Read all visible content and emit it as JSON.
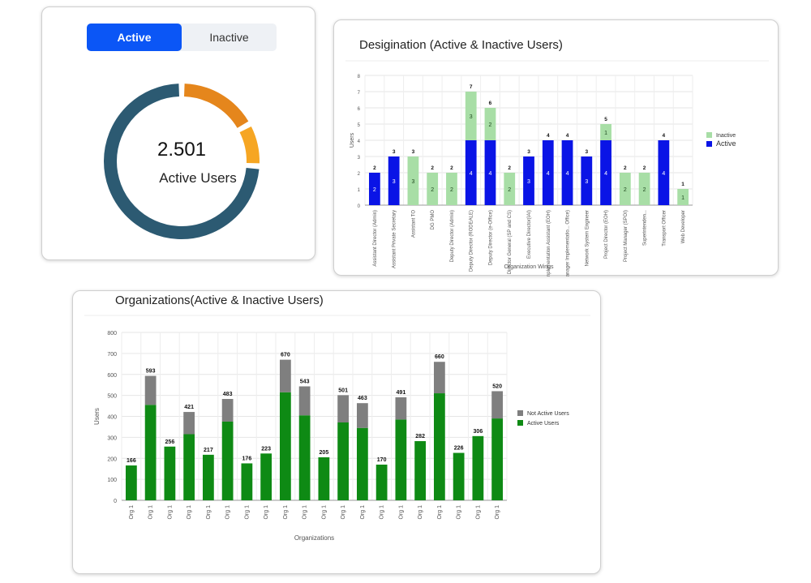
{
  "donut_card": {
    "tabs": {
      "active": "Active",
      "inactive": "Inactive"
    },
    "value": "2.501",
    "label": "Active Users",
    "colors": {
      "ring": "#2c5a72",
      "accent1": "#e5861c",
      "accent2": "#f6a623"
    },
    "segments": [
      0.17,
      0.09,
      0.74
    ]
  },
  "chart_data": [
    {
      "type": "bar",
      "title": "Desigination (Active & Inactive Users)",
      "xlabel": "Organization Wings",
      "ylabel": "Users",
      "ylim": [
        0,
        8
      ],
      "yticks": [
        "0",
        "1",
        "2",
        "3",
        "4",
        "5",
        "6",
        "7",
        "8"
      ],
      "grid": true,
      "legend_position": "right",
      "categories": [
        "Assistant Director (Admin)",
        "Assistant Private Secretary",
        "Assistant TO",
        "DG PMO",
        "Deputy Director (Admin)",
        "Deputy Director (RODEALE)",
        "Deputy Director (e-Office)",
        "Director General (SP and CS)",
        "Executive Director(IAI)",
        "Implementation Assistant (EOH)",
        "Manager Implementatio... Office)",
        "Network System Engineer",
        "Project Director (EOH)",
        "Project Manager (SPOI)",
        "Superintenden...",
        "Transport Officer",
        "Web Developer"
      ],
      "totals": [
        2,
        3,
        3,
        2,
        2,
        7,
        6,
        2,
        3,
        4,
        4,
        3,
        5,
        2,
        2,
        4,
        1
      ],
      "series": [
        {
          "name": "Inactive",
          "color": "#a8dea6",
          "values": [
            0,
            0,
            3,
            2,
            2,
            3,
            2,
            2,
            0,
            0,
            0,
            0,
            1,
            2,
            2,
            0,
            1
          ]
        },
        {
          "name": "Active",
          "color": "#0a14e6",
          "values": [
            2,
            3,
            0,
            0,
            0,
            4,
            4,
            0,
            3,
            4,
            4,
            3,
            4,
            0,
            0,
            4,
            0
          ]
        }
      ]
    },
    {
      "type": "bar",
      "title": "Organizations(Active & Inactive Users)",
      "xlabel": "Organizations",
      "ylabel": "Users",
      "ylim": [
        0,
        800
      ],
      "yticks": [
        "0",
        "100",
        "200",
        "300",
        "400",
        "500",
        "600",
        "700",
        "800"
      ],
      "grid": true,
      "legend_position": "right",
      "categories": [
        "Org 1",
        "Org 1",
        "Org 1",
        "Org 1",
        "Org 1",
        "Org 1",
        "Org 1",
        "Org 1",
        "Org 1",
        "Org 1",
        "Org 1",
        "Org 1",
        "Org 1",
        "Org 1",
        "Org 1",
        "Org 1",
        "Org 1",
        "Org 1",
        "Org 1",
        "Org 1"
      ],
      "totals": [
        166,
        593,
        256,
        421,
        217,
        483,
        176,
        223,
        670,
        543,
        205,
        501,
        463,
        170,
        491,
        282,
        660,
        226,
        306,
        520
      ],
      "series": [
        {
          "name": "Not Active Users",
          "color": "#7f7f7f",
          "values": [
            0,
            138,
            0,
            106,
            0,
            108,
            0,
            0,
            155,
            138,
            0,
            130,
            118,
            0,
            106,
            0,
            150,
            0,
            0,
            130
          ]
        },
        {
          "name": "Active Users",
          "color": "#0e8a14",
          "values": [
            166,
            455,
            256,
            315,
            217,
            375,
            176,
            223,
            515,
            405,
            205,
            371,
            345,
            170,
            385,
            282,
            510,
            226,
            306,
            390
          ]
        }
      ]
    }
  ]
}
